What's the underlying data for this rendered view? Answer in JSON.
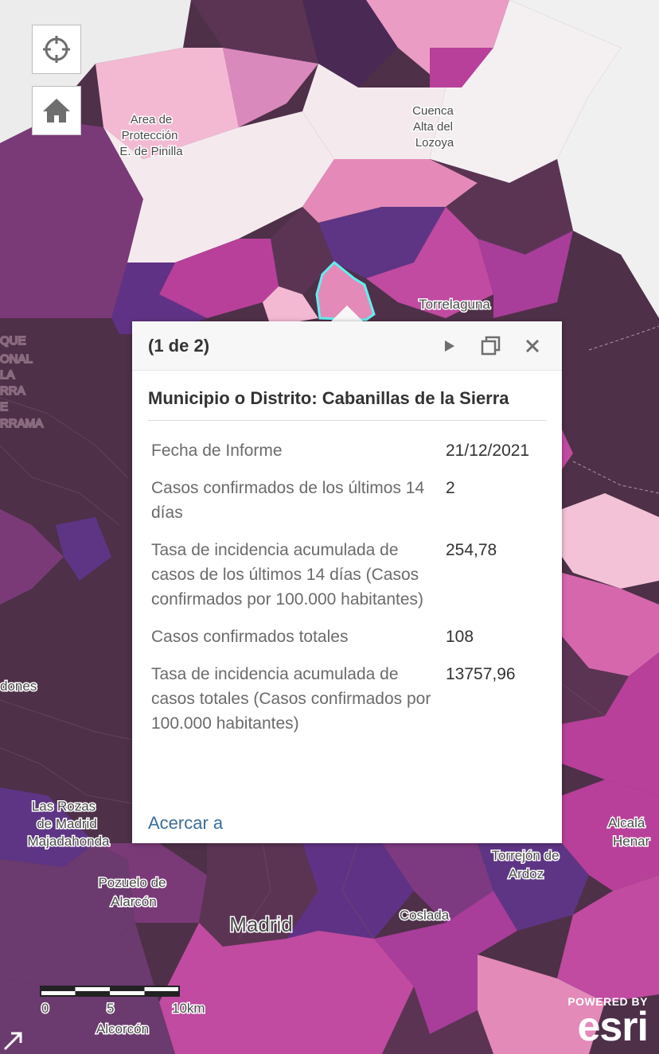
{
  "map": {
    "labels": {
      "pinilla_1": "Area de",
      "pinilla_2": "Protección",
      "pinilla_3": "E. de Pinilla",
      "lozoya_1": "Cuenca",
      "lozoya_2": "Alta del",
      "lozoya_3": "Lozoya",
      "torrelaguna": "Torrelaguna",
      "parque_1": "QUE",
      "parque_2": "ONAL",
      "parque_3": "LA",
      "parque_4": "RRA",
      "parque_5": "E",
      "parque_6": "RRAMA",
      "dones": "dones",
      "rozas_1": "Las Rozas",
      "rozas_2": "de Madrid",
      "majadahonda": "Majadahonda",
      "pozuelo_1": "Pozuelo de",
      "pozuelo_2": "Alarcón",
      "madrid": "Madrid",
      "coslada": "Coslada",
      "torrejon_1": "Torrejón de",
      "torrejon_2": "Ardoz",
      "alcala_1": "Alcalá",
      "alcala_2": "Henar",
      "alcorcon": "Alcorcón"
    },
    "scalebar": {
      "ticks": [
        "0",
        "5",
        "10km"
      ]
    },
    "attribution": {
      "powered": "POWERED BY",
      "brand": "esri"
    },
    "colors": {
      "highlight": "#5ff0f0",
      "dark_plum": "#5b3454",
      "light_pink": "#ea9cc4",
      "magenta": "#b8409a"
    }
  },
  "controls": {
    "locate": {
      "icon": "crosshair-icon"
    },
    "home": {
      "icon": "home-icon"
    }
  },
  "popup": {
    "pager": "(1 de 2)",
    "title": "Municipio o Distrito: Cabanillas de la Sierra",
    "fields": [
      {
        "label": "Fecha de Informe",
        "value": "21/12/2021"
      },
      {
        "label": "Casos confirmados de los últimos 14 días",
        "value": "2"
      },
      {
        "label": "Tasa de incidencia acumulada de casos de los últimos 14 días (Casos confirmados por 100.000 habitantes)",
        "value": "254,78"
      },
      {
        "label": "Casos confirmados totales",
        "value": "108"
      },
      {
        "label": "Tasa de incidencia acumulada de casos totales (Casos confirmados por 100.000 habitantes)",
        "value": "13757,96"
      }
    ],
    "zoom_link": "Acercar a"
  }
}
